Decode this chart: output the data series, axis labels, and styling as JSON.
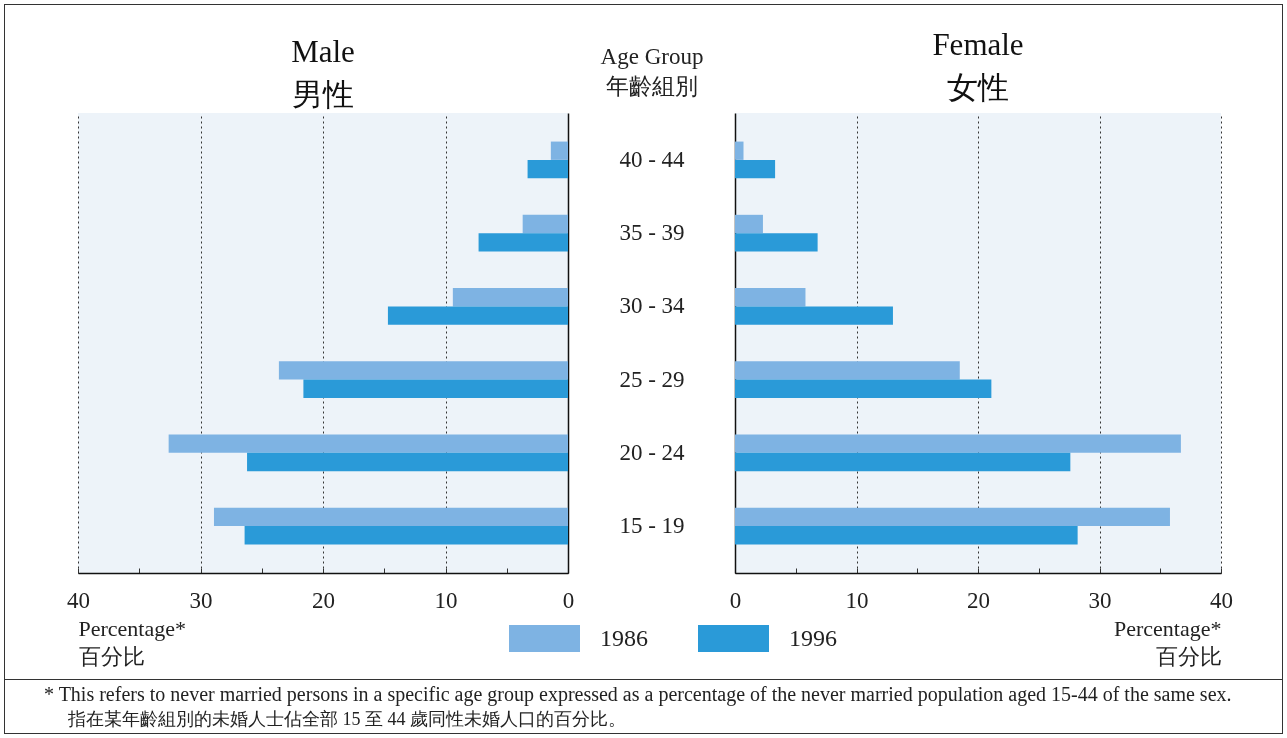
{
  "chart_data": [
    {
      "type": "bar",
      "orientation": "horizontal",
      "title": "Male\n男性",
      "xlabel": "Percentage*\n百分比",
      "ylabel": "Age Group\n年齡組別",
      "categories": [
        "40 - 44",
        "35 - 39",
        "30 - 34",
        "25 - 29",
        "20 - 24",
        "15 - 19"
      ],
      "series": [
        {
          "name": "1986",
          "color": "#7eb3e3",
          "values": [
            1.4,
            3.7,
            9.4,
            23.6,
            32.6,
            28.9
          ]
        },
        {
          "name": "1996",
          "color": "#2a9ad8",
          "values": [
            3.3,
            7.3,
            14.7,
            21.6,
            26.2,
            26.4
          ]
        }
      ],
      "xlim": [
        40,
        0
      ],
      "xticks": [
        40,
        {
          "value": 35,
          "label": null
        },
        30,
        {
          "value": 25,
          "label": null
        },
        20,
        {
          "value": 15,
          "label": null
        },
        10,
        {
          "value": 5,
          "label": null
        },
        0
      ],
      "grid": "x",
      "legend": "bottom",
      "annotations": [
        "* This refers to never married persons in a specific age group expressed as a percentage of the never married population aged 15-44 of the same sex.",
        "指在某年齡組別的未婚人士佔全部 15 至 44 歲同性未婚人口的百分比。"
      ]
    },
    {
      "type": "bar",
      "orientation": "horizontal",
      "title": "Female\n女性",
      "xlabel": "Percentage*\n百分比",
      "categories": [
        "40 - 44",
        "35 - 39",
        "30 - 34",
        "25 - 29",
        "20 - 24",
        "15 - 19"
      ],
      "series": [
        {
          "name": "1986",
          "color": "#7eb3e3",
          "values": [
            0.7,
            2.3,
            5.8,
            18.5,
            36.7,
            35.8
          ]
        },
        {
          "name": "1996",
          "color": "#2a9ad8",
          "values": [
            3.3,
            6.8,
            13.0,
            21.1,
            27.6,
            28.2
          ]
        }
      ],
      "xlim": [
        0,
        40
      ],
      "xticks": [
        0,
        {
          "value": 5,
          "label": null
        },
        10,
        {
          "value": 15,
          "label": null
        },
        20,
        {
          "value": 25,
          "label": null
        },
        30,
        {
          "value": 35,
          "label": null
        },
        40
      ],
      "grid": "x",
      "legend": "bottom",
      "tick_labels": "x"
    }
  ]
}
